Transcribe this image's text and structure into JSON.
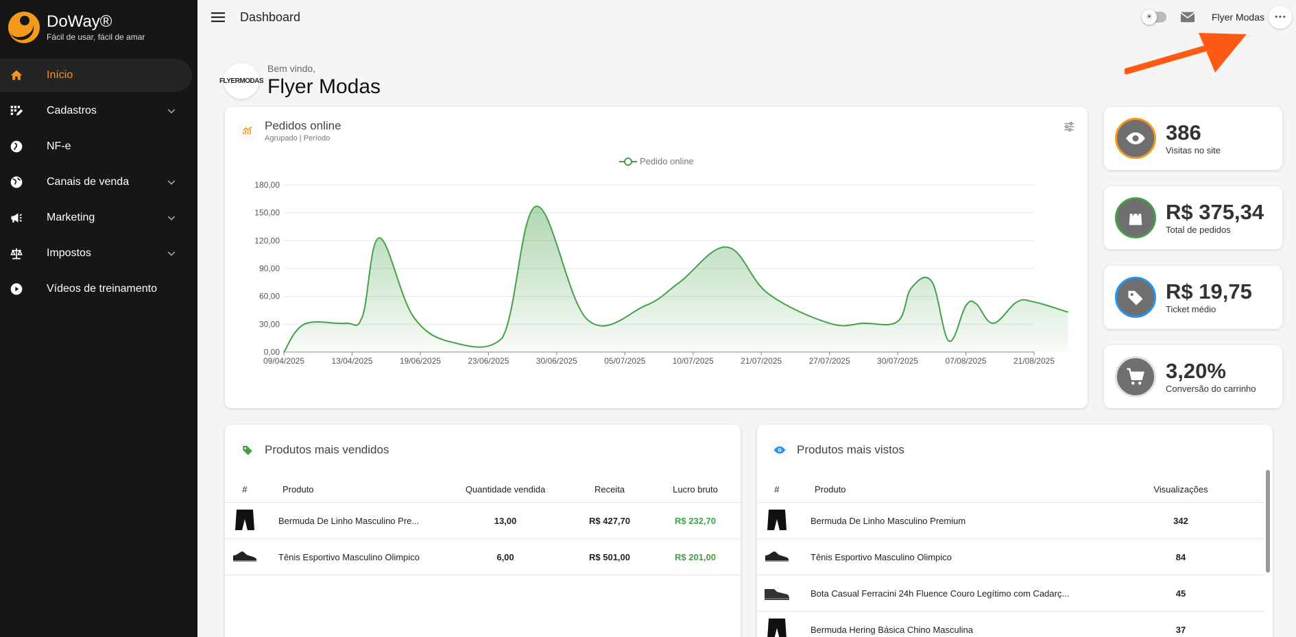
{
  "brand": {
    "name": "DoWay®",
    "tagline": "Fácil de usar, fácil de amar"
  },
  "sidebar": {
    "items": [
      {
        "label": "Início",
        "icon": "home-icon",
        "active": true
      },
      {
        "label": "Cadastros",
        "icon": "grid-edit-icon",
        "expandable": true
      },
      {
        "label": "NF-e",
        "icon": "compass-icon"
      },
      {
        "label": "Canais de venda",
        "icon": "globe-icon",
        "expandable": true
      },
      {
        "label": "Marketing",
        "icon": "megaphone-icon",
        "expandable": true
      },
      {
        "label": "Impostos",
        "icon": "scale-icon",
        "expandable": true
      },
      {
        "label": "Vídeos de treinamento",
        "icon": "play-circle-icon"
      }
    ]
  },
  "header": {
    "title": "Dashboard",
    "user_name": "Flyer Modas"
  },
  "welcome": {
    "greeting": "Bem vindo,",
    "name": "Flyer Modas",
    "logo_text": "FLYERMODAS"
  },
  "orders_card": {
    "title": "Pedidos online",
    "subtitle": "Agrupado | Período",
    "legend": "Pedido online"
  },
  "chart_data": {
    "type": "area",
    "title": "Pedidos online",
    "series": [
      {
        "name": "Pedido online",
        "color": "#43a047"
      }
    ],
    "x_tick_labels": [
      "09/04/2025",
      "13/04/2025",
      "19/06/2025",
      "23/06/2025",
      "30/06/2025",
      "05/07/2025",
      "10/07/2025",
      "21/07/2025",
      "27/07/2025",
      "30/07/2025",
      "07/08/2025",
      "21/08/2025"
    ],
    "y_tick_labels": [
      "0,00",
      "30,00",
      "60,00",
      "90,00",
      "120,00",
      "150,00",
      "180,00"
    ],
    "ylim": [
      0,
      180
    ],
    "x": [
      0,
      0.3,
      0.9,
      1.15,
      1.4,
      1.9,
      2.5,
      3.2,
      3.7,
      4.45,
      5.3,
      5.8,
      6.5,
      7.1,
      8.0,
      8.5,
      9.0,
      9.2,
      9.5,
      9.75,
      10.0,
      10.15,
      10.4,
      10.75,
      11.0,
      11.5
    ],
    "values": [
      0,
      30,
      31,
      38,
      123,
      38,
      10,
      15,
      157,
      35,
      50,
      75,
      113,
      63,
      31,
      31,
      33,
      69,
      76,
      12,
      50,
      52,
      31,
      54,
      54,
      43
    ],
    "grid": true,
    "legend_position": "top-center"
  },
  "stats": [
    {
      "value": "386",
      "label": "Visitas no site",
      "icon": "eye-icon",
      "ring": "#f59a1c"
    },
    {
      "value": "R$ 375,34",
      "label": "Total de pedidos",
      "icon": "shopping-bag-icon",
      "ring": "#43a047"
    },
    {
      "value": "R$ 19,75",
      "label": "Ticket médio",
      "icon": "tag-icon",
      "ring": "#2196f3"
    },
    {
      "value": "3,20%",
      "label": "Conversão do carrinho",
      "icon": "cart-icon",
      "ring": "#e0e0e0"
    }
  ],
  "best_sellers": {
    "title": "Produtos mais vendidos",
    "columns": [
      "#",
      "Produto",
      "Quantidade vendida",
      "Receita",
      "Lucro bruto"
    ],
    "rows": [
      {
        "product": "Bermuda De Linho Masculino Pre...",
        "qty": "13,00",
        "revenue": "R$ 427,70",
        "profit": "R$ 232,70",
        "thumb": "shorts-icon"
      },
      {
        "product": "Tênis Esportivo Masculino Olimpico",
        "qty": "6,00",
        "revenue": "R$ 501,00",
        "profit": "R$ 201,00",
        "thumb": "sneaker-icon"
      }
    ]
  },
  "most_viewed": {
    "title": "Produtos mais vistos",
    "columns": [
      "#",
      "Produto",
      "Visualizações"
    ],
    "rows": [
      {
        "product": "Bermuda De Linho Masculino Premium",
        "views": "342",
        "thumb": "shorts-icon"
      },
      {
        "product": "Tênis Esportivo Masculino Olimpico",
        "views": "84",
        "thumb": "sneaker-icon"
      },
      {
        "product": "Bota Casual Ferracini 24h Fluence Couro Legítimo com Cadarç...",
        "views": "45",
        "thumb": "boot-icon"
      },
      {
        "product": "Bermuda Hering Básica Chino Masculina",
        "views": "37",
        "thumb": "shorts-icon"
      }
    ]
  },
  "colors": {
    "accent": "#f7931e",
    "sidebar": "#161616",
    "chart": "#43a047",
    "arrow": "#ff5a14"
  }
}
